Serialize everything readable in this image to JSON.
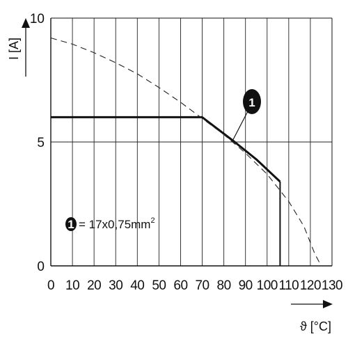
{
  "chart_data": {
    "type": "line",
    "title": "",
    "xlabel": "ϑ [°C]",
    "ylabel": "I [A]",
    "xlim": [
      0,
      130
    ],
    "ylim": [
      0,
      10
    ],
    "x_ticks": [
      "0",
      "10",
      "20",
      "30",
      "40",
      "50",
      "60",
      "70",
      "80",
      "90",
      "100",
      "110",
      "120",
      "130"
    ],
    "y_ticks": [
      "0",
      "5",
      "10"
    ],
    "grid": {
      "vertical": "every 10 °C",
      "horizontal": "at 5 A"
    },
    "series": [
      {
        "style": "solid-bold",
        "points": [
          [
            0,
            6.0
          ],
          [
            70,
            6.0
          ],
          [
            85,
            5.0
          ],
          [
            95,
            4.3
          ],
          [
            106,
            3.4
          ],
          [
            106,
            0
          ]
        ]
      },
      {
        "style": "dashed",
        "points": [
          [
            0,
            9.2
          ],
          [
            10,
            8.95
          ],
          [
            20,
            8.6
          ],
          [
            30,
            8.2
          ],
          [
            40,
            7.75
          ],
          [
            50,
            7.2
          ],
          [
            60,
            6.6
          ],
          [
            70,
            5.95
          ],
          [
            80,
            5.3
          ],
          [
            90,
            4.55
          ],
          [
            100,
            3.7
          ],
          [
            110,
            2.6
          ],
          [
            117,
            1.6
          ],
          [
            122,
            0.5
          ],
          [
            125,
            0
          ]
        ]
      }
    ],
    "marker": {
      "label": "1",
      "points_to": [
        84,
        5.05
      ]
    },
    "legend": {
      "marker": "1",
      "text": "= 17x0,75mm",
      "superscript": "2",
      "placement": "lower-left"
    }
  }
}
